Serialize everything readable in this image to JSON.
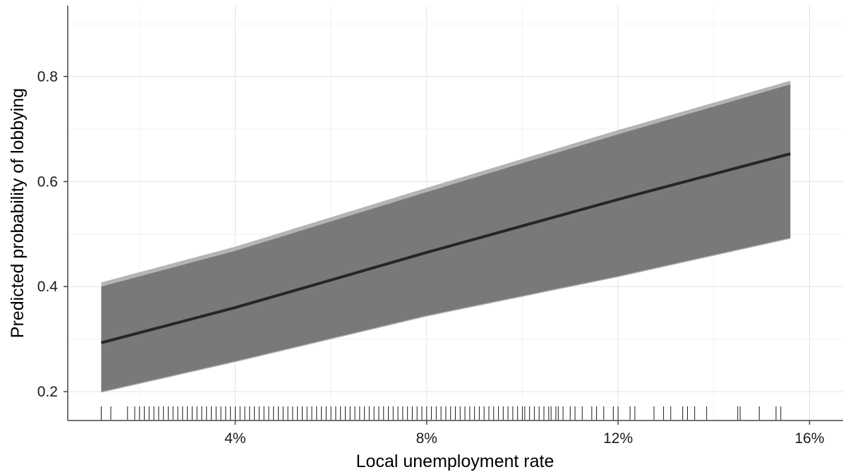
{
  "chart_data": {
    "type": "line",
    "xlabel": "Local unemployment rate",
    "ylabel": "Predicted probability of lobbying",
    "xlim": [
      0.5,
      16.7
    ],
    "ylim": [
      0.145,
      0.935
    ],
    "x_ticks": [
      4,
      8,
      12,
      16
    ],
    "x_tick_labels": [
      "4%",
      "8%",
      "12%",
      "16%"
    ],
    "y_ticks": [
      0.2,
      0.4,
      0.6,
      0.8
    ],
    "y_tick_labels": [
      "0.2",
      "0.4",
      "0.6",
      "0.8"
    ],
    "grid": true,
    "series": [
      {
        "role": "prediction",
        "x": [
          1.2,
          4,
          8,
          12,
          15.6
        ],
        "y": [
          0.293,
          0.36,
          0.465,
          0.566,
          0.653
        ]
      },
      {
        "role": "confidence_band_inner",
        "x": [
          1.2,
          4,
          8,
          12,
          15.6
        ],
        "upper": [
          0.4,
          0.468,
          0.58,
          0.69,
          0.785
        ],
        "lower": [
          0.2,
          0.258,
          0.345,
          0.42,
          0.493
        ]
      },
      {
        "role": "confidence_band_outer",
        "x": [
          1.2,
          4,
          8,
          12,
          15.6
        ],
        "upper": [
          0.408,
          0.476,
          0.588,
          0.698,
          0.792
        ],
        "lower": [
          0.198,
          0.256,
          0.343,
          0.418,
          0.491
        ]
      }
    ],
    "rug": [
      1.2,
      1.4,
      1.75,
      1.9,
      2.0,
      2.1,
      2.2,
      2.3,
      2.4,
      2.5,
      2.6,
      2.7,
      2.8,
      2.9,
      3.0,
      3.1,
      3.2,
      3.3,
      3.4,
      3.5,
      3.6,
      3.7,
      3.8,
      3.9,
      4.0,
      4.1,
      4.2,
      4.3,
      4.4,
      4.5,
      4.6,
      4.7,
      4.8,
      4.9,
      5.0,
      5.1,
      5.2,
      5.3,
      5.4,
      5.5,
      5.6,
      5.7,
      5.8,
      5.9,
      6.0,
      6.1,
      6.2,
      6.3,
      6.4,
      6.5,
      6.6,
      6.7,
      6.8,
      6.9,
      7.0,
      7.1,
      7.2,
      7.3,
      7.4,
      7.5,
      7.6,
      7.7,
      7.8,
      7.9,
      8.0,
      8.1,
      8.2,
      8.3,
      8.4,
      8.5,
      8.6,
      8.7,
      8.8,
      8.9,
      9.0,
      9.1,
      9.2,
      9.3,
      9.4,
      9.5,
      9.6,
      9.7,
      9.8,
      9.9,
      10.0,
      10.05,
      10.15,
      10.25,
      10.35,
      10.45,
      10.55,
      10.6,
      10.7,
      10.75,
      10.85,
      11.0,
      11.1,
      11.25,
      11.45,
      11.55,
      11.7,
      11.9,
      12.0,
      12.25,
      12.35,
      12.75,
      12.95,
      13.1,
      13.35,
      13.45,
      13.6,
      13.85,
      14.5,
      14.55,
      14.95,
      15.3,
      15.4
    ]
  }
}
